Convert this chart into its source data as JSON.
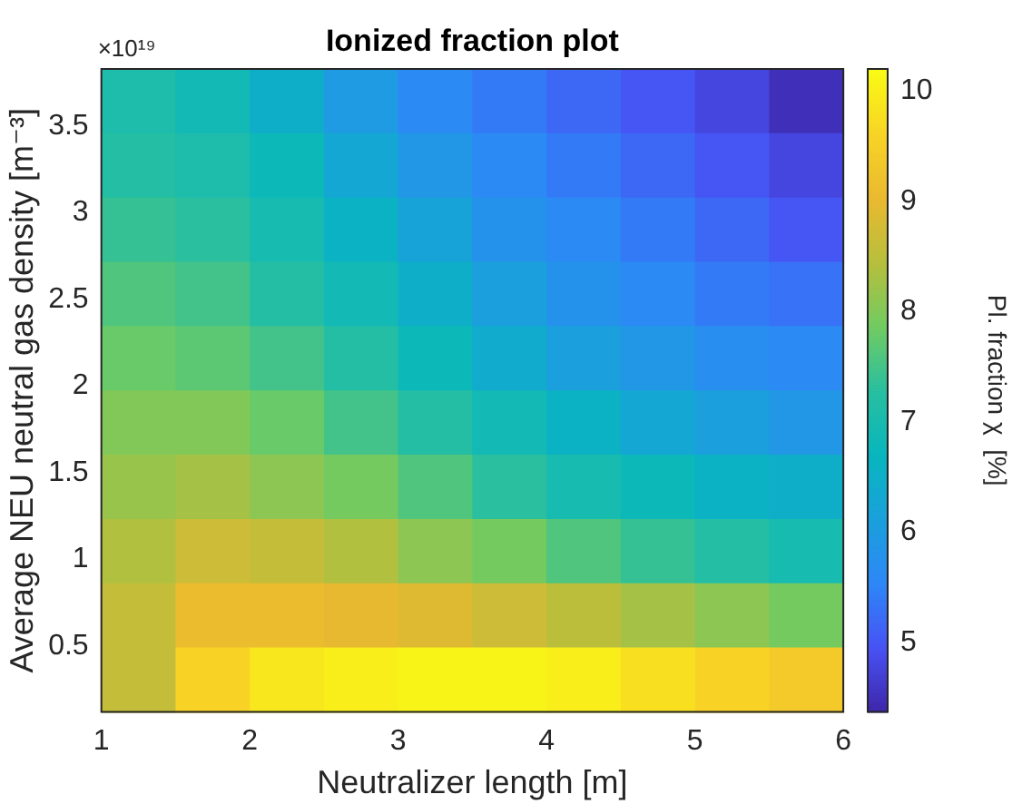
{
  "chart_data": {
    "type": "heatmap",
    "title": "Ionized fraction plot",
    "xlabel": "Neutralizer length [m]",
    "ylabel": "Average NEU neutral gas density [m⁻³]",
    "clabel": "Pl. fraction χ  [%]",
    "annotations": [
      "×10¹⁹"
    ],
    "xlim": [
      1,
      6
    ],
    "xticks": [
      1,
      2,
      3,
      4,
      5,
      6
    ],
    "ylim": [
      0.12,
      3.83
    ],
    "yticks": [
      0.5,
      1,
      1.5,
      2,
      2.5,
      3,
      3.5
    ],
    "clim": [
      4.37,
      10.2
    ],
    "cticks": [
      5,
      6,
      7,
      8,
      9,
      10
    ],
    "cells": [
      [
        7.1,
        6.9,
        6.5,
        6.0,
        5.6,
        5.4,
        5.2,
        5.0,
        4.8,
        4.5
      ],
      [
        7.2,
        7.1,
        6.8,
        6.3,
        5.9,
        5.6,
        5.4,
        5.2,
        5.0,
        4.8
      ],
      [
        7.4,
        7.3,
        7.0,
        6.6,
        6.2,
        5.8,
        5.6,
        5.4,
        5.2,
        5.0
      ],
      [
        7.6,
        7.5,
        7.2,
        6.9,
        6.5,
        6.1,
        5.8,
        5.6,
        5.4,
        5.3
      ],
      [
        7.8,
        7.7,
        7.5,
        7.2,
        6.8,
        6.4,
        6.1,
        5.9,
        5.7,
        5.6
      ],
      [
        8.0,
        8.0,
        7.8,
        7.5,
        7.2,
        6.9,
        6.6,
        6.3,
        6.1,
        5.9
      ],
      [
        8.2,
        8.3,
        8.1,
        7.9,
        7.6,
        7.3,
        7.0,
        6.8,
        6.6,
        6.5
      ],
      [
        8.4,
        8.7,
        8.6,
        8.4,
        8.1,
        7.9,
        7.6,
        7.4,
        7.2,
        7.0
      ],
      [
        8.6,
        9.1,
        9.1,
        9.0,
        8.9,
        8.7,
        8.5,
        8.3,
        8.1,
        7.9
      ],
      [
        8.6,
        9.6,
        9.9,
        10.0,
        10.1,
        10.1,
        10.0,
        9.8,
        9.6,
        9.4
      ]
    ]
  }
}
